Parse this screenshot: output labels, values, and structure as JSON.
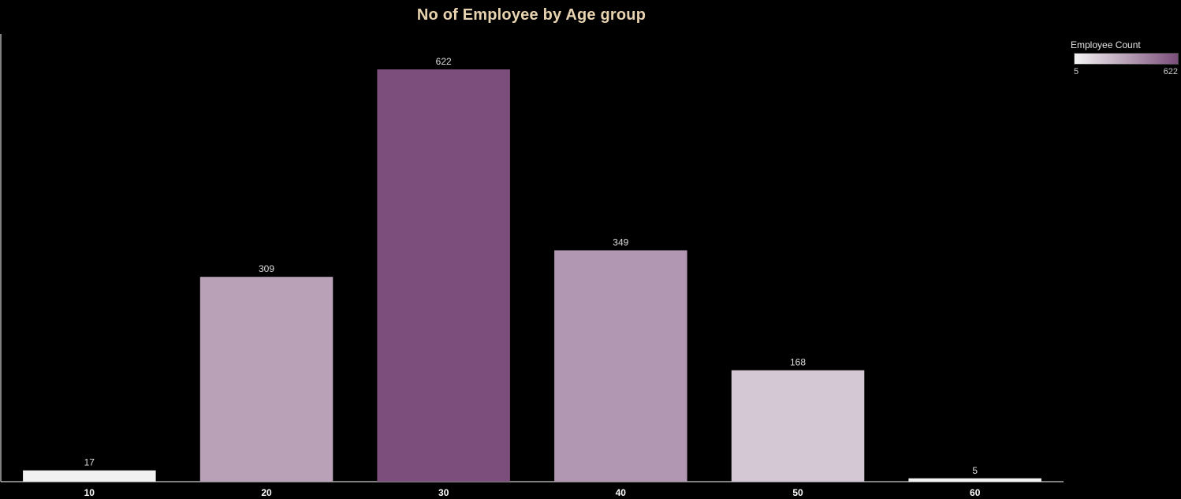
{
  "chart_data": {
    "type": "bar",
    "title": "No of Employee by Age group",
    "xlabel": "",
    "ylabel": "",
    "categories": [
      "10",
      "20",
      "30",
      "40",
      "50",
      "60"
    ],
    "values": [
      17,
      309,
      622,
      349,
      168,
      5
    ],
    "ylim": [
      0,
      622
    ],
    "grid": false,
    "legend": {
      "title": "Employee Count",
      "min_label": "5",
      "max_label": "622",
      "min_value": 5,
      "max_value": 622,
      "min_color": "#f4f4f4",
      "max_color": "#7c4e7b",
      "placement": "top-right"
    }
  },
  "colors": {
    "background": "#000000",
    "title": "#e8d3b0",
    "axis": "#ffffff"
  }
}
